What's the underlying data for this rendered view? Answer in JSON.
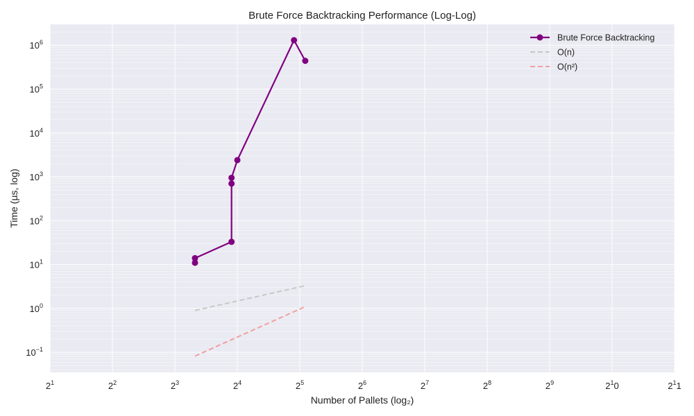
{
  "chart_data": {
    "type": "line",
    "title": "Brute Force Backtracking Performance (Log-Log)",
    "xlabel": "Number of Pallets (log₂)",
    "ylabel": "Time (µs, log)",
    "x_scale": "log2",
    "y_scale": "log10",
    "xlim": [
      2,
      2048
    ],
    "ylim": [
      0.035,
      3000000
    ],
    "grid": true,
    "legend_position": "top-right",
    "x_tick_labels": [
      {
        "base": "2",
        "exp": "1",
        "value": 2
      },
      {
        "base": "2",
        "exp": "2",
        "value": 4
      },
      {
        "base": "2",
        "exp": "3",
        "value": 8
      },
      {
        "base": "2",
        "exp": "4",
        "value": 16
      },
      {
        "base": "2",
        "exp": "5",
        "value": 32
      },
      {
        "base": "2",
        "exp": "6",
        "value": 64
      },
      {
        "base": "2",
        "exp": "7",
        "value": 128
      },
      {
        "base": "2",
        "exp": "8",
        "value": 256
      },
      {
        "base": "2",
        "exp": "9",
        "value": 512
      },
      {
        "base": "2",
        "exp": "1",
        "suffix": "0",
        "value": 1024
      },
      {
        "base": "2",
        "exp": "1",
        "suffix": "1",
        "value": 2048
      }
    ],
    "y_tick_labels": [
      {
        "base": "10",
        "exp": "−1",
        "value": 0.1
      },
      {
        "base": "10",
        "exp": "0",
        "value": 1
      },
      {
        "base": "10",
        "exp": "1",
        "value": 10
      },
      {
        "base": "10",
        "exp": "2",
        "value": 100
      },
      {
        "base": "10",
        "exp": "3",
        "value": 1000
      },
      {
        "base": "10",
        "exp": "4",
        "value": 10000
      },
      {
        "base": "10",
        "exp": "5",
        "value": 100000
      },
      {
        "base": "10",
        "exp": "6",
        "value": 1000000
      }
    ],
    "series": [
      {
        "name": "Brute Force Backtracking",
        "color": "#800080",
        "style": "solid",
        "marker": "circle",
        "points": [
          {
            "x": 10,
            "y": 11
          },
          {
            "x": 10,
            "y": 14
          },
          {
            "x": 15,
            "y": 33
          },
          {
            "x": 15,
            "y": 700
          },
          {
            "x": 15,
            "y": 950
          },
          {
            "x": 16,
            "y": 2400
          },
          {
            "x": 30,
            "y": 1300000
          },
          {
            "x": 34,
            "y": 440000
          }
        ]
      },
      {
        "name": "O(n)",
        "color": "#c8c8c8",
        "style": "dashed",
        "marker": "none",
        "points": [
          {
            "x": 10,
            "y": 0.9
          },
          {
            "x": 34,
            "y": 3.3
          }
        ]
      },
      {
        "name": "O(n²)",
        "color": "#f0a0a0",
        "style": "dashed",
        "marker": "none",
        "points": [
          {
            "x": 10,
            "y": 0.082
          },
          {
            "x": 34,
            "y": 1.1
          }
        ]
      }
    ]
  }
}
